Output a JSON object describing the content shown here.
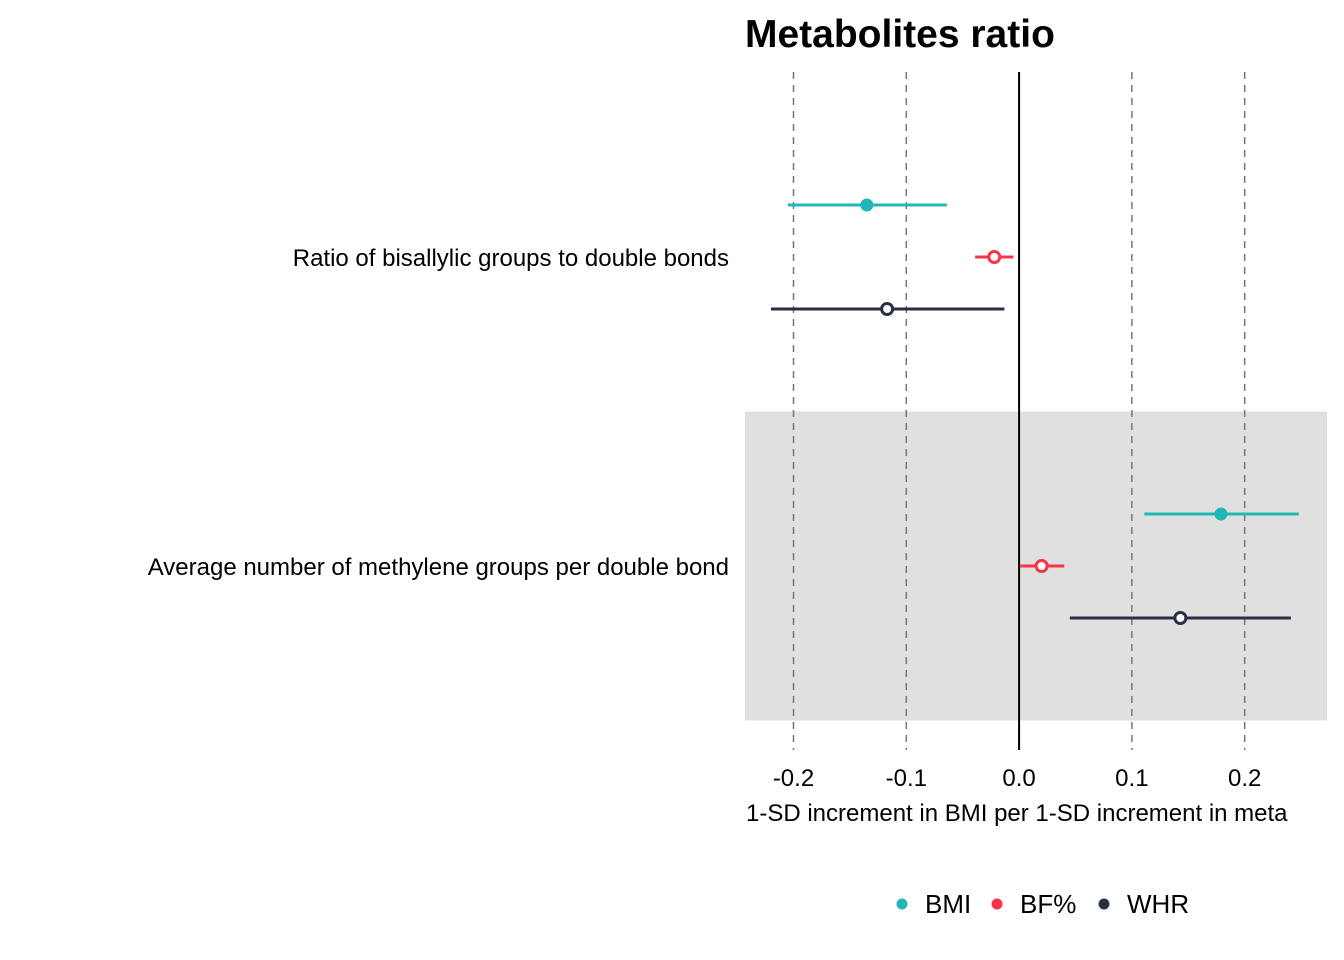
{
  "chart_data": {
    "type": "scatter",
    "title": "Metabolites ratio",
    "xlabel": "1-SD increment in BMI per 1-SD increment in meta",
    "ylabel": "",
    "xlim": [
      -0.243,
      0.273
    ],
    "xticks": [
      -0.2,
      -0.1,
      0.0,
      0.1,
      0.2
    ],
    "xtick_labels": [
      "-0.2",
      "-0.1",
      "0.0",
      "0.1",
      "0.2"
    ],
    "grid": "dashed vertical",
    "reference_line": 0.0,
    "legend_position": "bottom",
    "categories": [
      "Ratio of bisallylic groups to double bonds",
      "Average number of methylene groups per double bond"
    ],
    "shaded_categories": [
      1
    ],
    "series": [
      {
        "name": "BMI",
        "color": "#20b7b6",
        "marker": "filled",
        "estimates": [
          -0.135,
          0.179
        ],
        "ci_low": [
          -0.205,
          0.111
        ],
        "ci_high": [
          -0.064,
          0.248
        ]
      },
      {
        "name": "BF%",
        "color": "#fb3445",
        "marker": "open",
        "estimates": [
          -0.022,
          0.02
        ],
        "ci_low": [
          -0.039,
          0.001
        ],
        "ci_high": [
          -0.005,
          0.04
        ]
      },
      {
        "name": "WHR",
        "color": "#2a2f45",
        "marker": "open",
        "estimates": [
          -0.117,
          0.143
        ],
        "ci_low": [
          -0.22,
          0.045
        ],
        "ci_high": [
          -0.013,
          0.241
        ]
      }
    ]
  }
}
